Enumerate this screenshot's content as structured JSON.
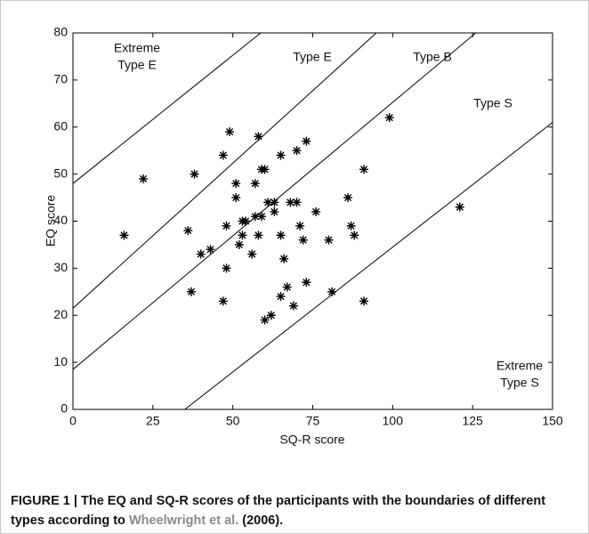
{
  "chart_data": {
    "type": "scatter",
    "xlabel": "SQ-R score",
    "ylabel": "EQ score",
    "xlim": [
      0,
      150
    ],
    "ylim": [
      0,
      80
    ],
    "xticks": [
      0,
      25,
      50,
      75,
      100,
      125,
      150
    ],
    "yticks": [
      0,
      10,
      20,
      30,
      40,
      50,
      60,
      70,
      80
    ],
    "color": "#000000",
    "x": [
      16,
      22,
      36,
      37,
      38,
      40,
      43,
      47,
      47,
      48,
      48,
      49,
      51,
      51,
      52,
      53,
      53,
      54,
      56,
      57,
      57,
      58,
      58,
      59,
      59,
      60,
      60,
      61,
      62,
      63,
      63,
      65,
      65,
      65,
      66,
      67,
      68,
      69,
      70,
      70,
      71,
      72,
      73,
      73,
      76,
      80,
      81,
      86,
      87,
      88,
      91,
      91,
      99,
      121
    ],
    "y": [
      37,
      49,
      38,
      25,
      50,
      33,
      34,
      23,
      54,
      39,
      30,
      59,
      48,
      45,
      35,
      37,
      40,
      40,
      33,
      48,
      41,
      58,
      37,
      41,
      51,
      51,
      19,
      44,
      20,
      44,
      42,
      54,
      37,
      24,
      32,
      26,
      44,
      22,
      44,
      55,
      39,
      36,
      57,
      27,
      42,
      36,
      25,
      45,
      39,
      37,
      51,
      23,
      62,
      43
    ],
    "lines": [
      {
        "x": [
          0,
          58.7
        ],
        "y": [
          48,
          80
        ]
      },
      {
        "x": [
          0,
          94.9
        ],
        "y": [
          21.5,
          80
        ]
      },
      {
        "x": [
          0,
          126
        ],
        "y": [
          8.5,
          80
        ]
      },
      {
        "x": [
          35,
          150
        ],
        "y": [
          0,
          61
        ]
      }
    ],
    "annotations": [
      [
        "Extreme",
        "Type E"
      ],
      [
        "Type E"
      ],
      [
        "Type B"
      ],
      [
        "Type S"
      ],
      [
        "Extreme",
        "Type S"
      ]
    ]
  },
  "caption": {
    "text": "FIGURE 1 | The EQ and SQ-R scores of the participants with the boundaries of different types according to",
    "link": "Wheelwright et al.",
    "after": "(2006)."
  }
}
